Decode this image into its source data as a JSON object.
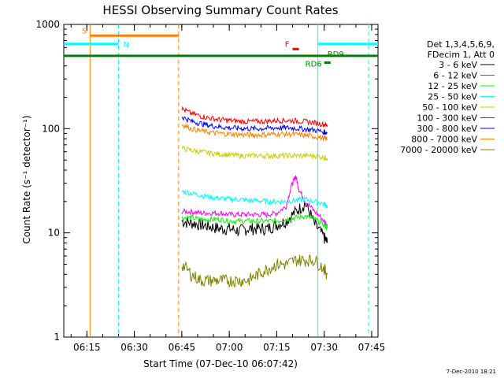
{
  "chart_data": {
    "type": "line",
    "title": "HESSI Observing Summary Count Rates",
    "xlabel": "Start Time (07-Dec-10 06:07:42)",
    "ylabel": "Count Rate (s⁻¹ detector⁻¹)",
    "y_scale": "log",
    "ylim": [
      1,
      1000
    ],
    "xlim": [
      "06:07:42",
      "07:47:00"
    ],
    "x_ticks": [
      "06:15",
      "06:30",
      "06:45",
      "07:00",
      "07:15",
      "07:30",
      "07:45"
    ],
    "y_ticks": [
      "1",
      "10",
      "100",
      "1000"
    ],
    "legend_title": [
      "Det 1,3,4,5,6,9,",
      "FDecim 1, Att 0"
    ],
    "legend_position": "right",
    "timestamp": "7-Dec-2010 18:21",
    "series": [
      {
        "name": "3 - 6 keV",
        "color": "#000000",
        "x": [
          "06:45",
          "06:48",
          "06:51",
          "06:54",
          "06:57",
          "07:00",
          "07:03",
          "07:06",
          "07:09",
          "07:12",
          "07:15",
          "07:18",
          "07:21",
          "07:24",
          "07:27",
          "07:30",
          "07:31"
        ],
        "values": [
          13,
          12.5,
          12,
          11.5,
          11,
          11,
          10.5,
          11,
          11,
          11,
          12,
          13,
          16,
          19,
          12,
          9,
          8
        ]
      },
      {
        "name": "6 - 12 keV",
        "color": "#ff00ff",
        "x": [
          "06:45",
          "06:48",
          "06:51",
          "06:54",
          "06:57",
          "07:00",
          "07:03",
          "07:06",
          "07:09",
          "07:12",
          "07:15",
          "07:18",
          "07:20",
          "07:21",
          "07:22",
          "07:24",
          "07:27",
          "07:30",
          "07:31"
        ],
        "values": [
          16,
          16,
          15.5,
          15.5,
          15.5,
          15,
          15,
          15,
          15,
          15,
          15.5,
          18,
          30,
          35,
          26,
          20,
          16,
          13,
          12
        ]
      },
      {
        "name": "12 - 25 keV",
        "color": "#00ff00",
        "x": [
          "06:45",
          "06:48",
          "06:51",
          "06:54",
          "06:57",
          "07:00",
          "07:03",
          "07:06",
          "07:09",
          "07:12",
          "07:15",
          "07:18",
          "07:21",
          "07:24",
          "07:27",
          "07:30",
          "07:31"
        ],
        "values": [
          14,
          14,
          13.5,
          13.5,
          13.5,
          13,
          13,
          13,
          13,
          13,
          13,
          13.5,
          14,
          14.5,
          13.5,
          12,
          11
        ]
      },
      {
        "name": "25 - 50 keV",
        "color": "#00ffff",
        "x": [
          "06:45",
          "06:48",
          "06:51",
          "06:54",
          "06:57",
          "07:00",
          "07:03",
          "07:06",
          "07:09",
          "07:12",
          "07:15",
          "07:18",
          "07:21",
          "07:24",
          "07:27",
          "07:30",
          "07:31"
        ],
        "values": [
          25,
          24,
          23,
          22,
          21.5,
          21,
          21,
          20.5,
          20.5,
          20,
          20,
          20,
          20.5,
          21,
          20,
          19,
          18
        ]
      },
      {
        "name": "50 - 100 keV",
        "color": "#cccc00",
        "x": [
          "06:45",
          "06:48",
          "06:51",
          "06:54",
          "06:57",
          "07:00",
          "07:03",
          "07:06",
          "07:09",
          "07:12",
          "07:15",
          "07:18",
          "07:21",
          "07:24",
          "07:27",
          "07:30",
          "07:31"
        ],
        "values": [
          65,
          62,
          60,
          58,
          57,
          56,
          55,
          55,
          55,
          55,
          55,
          55,
          55,
          55,
          55,
          53,
          52
        ]
      },
      {
        "name": "100 - 300 keV",
        "color": "#ff0000",
        "x": [
          "06:45",
          "06:48",
          "06:51",
          "06:54",
          "06:57",
          "07:00",
          "07:03",
          "07:06",
          "07:09",
          "07:12",
          "07:15",
          "07:18",
          "07:21",
          "07:24",
          "07:27",
          "07:30",
          "07:31"
        ],
        "values": [
          155,
          140,
          132,
          126,
          122,
          120,
          118,
          117,
          117,
          118,
          120,
          120,
          119,
          117,
          114,
          110,
          108
        ]
      },
      {
        "name": "300 - 800 keV",
        "color": "#0000ff",
        "x": [
          "06:45",
          "06:48",
          "06:51",
          "06:54",
          "06:57",
          "07:00",
          "07:03",
          "07:06",
          "07:09",
          "07:12",
          "07:15",
          "07:18",
          "07:21",
          "07:24",
          "07:27",
          "07:30",
          "07:31"
        ],
        "values": [
          130,
          118,
          112,
          107,
          104,
          102,
          101,
          100,
          100,
          101,
          102,
          102,
          101,
          99,
          97,
          93,
          91
        ]
      },
      {
        "name": "800 - 7000 keV",
        "color": "#ff8000",
        "x": [
          "06:45",
          "06:48",
          "06:51",
          "06:54",
          "06:57",
          "07:00",
          "07:03",
          "07:06",
          "07:09",
          "07:12",
          "07:15",
          "07:18",
          "07:21",
          "07:24",
          "07:27",
          "07:30",
          "07:31"
        ],
        "values": [
          110,
          100,
          95,
          92,
          90,
          89,
          88,
          87,
          87,
          88,
          89,
          89,
          88,
          86,
          84,
          81,
          80
        ]
      },
      {
        "name": "7000 - 20000 keV",
        "color": "#808000",
        "x": [
          "06:45",
          "06:48",
          "06:51",
          "06:54",
          "06:57",
          "07:00",
          "07:03",
          "07:06",
          "07:09",
          "07:12",
          "07:15",
          "07:18",
          "07:21",
          "07:24",
          "07:27",
          "07:30",
          "07:31"
        ],
        "values": [
          5,
          4,
          3.5,
          3.5,
          3.5,
          3.5,
          3.5,
          3.5,
          4,
          4.5,
          5,
          5,
          5.5,
          5.5,
          5.5,
          4.5,
          4
        ]
      }
    ],
    "vertical_lines": [
      {
        "time": "06:16",
        "color": "#ff8000",
        "style": "solid"
      },
      {
        "time": "06:25",
        "color": "#00ffff",
        "style": "dashed"
      },
      {
        "time": "06:44",
        "color": "#ff8000",
        "style": "dashed"
      },
      {
        "time": "07:28",
        "color": "#00ffff",
        "style": "solid"
      },
      {
        "time": "07:44",
        "color": "#00ffff",
        "style": "dashed"
      }
    ],
    "flag_bars": [
      {
        "label": "S",
        "color": "#ff8000",
        "start": "06:16",
        "end": "06:44",
        "value": 780
      },
      {
        "label": "N",
        "color": "#00ffff",
        "start": "06:07:42",
        "end": "06:25",
        "value": 650
      },
      {
        "label": "",
        "color": "#00ffff",
        "start": "07:28",
        "end": "07:47",
        "value": 650
      },
      {
        "label": "F",
        "color": "#ff0000",
        "start": "07:20",
        "end": "07:22",
        "value": 580
      },
      {
        "label": "RD9",
        "color": "#008000",
        "start": "06:07:42",
        "end": "07:47",
        "value": 500
      },
      {
        "label": "RD6",
        "color": "#008000",
        "start": "07:30",
        "end": "07:32",
        "value": 430
      }
    ]
  }
}
